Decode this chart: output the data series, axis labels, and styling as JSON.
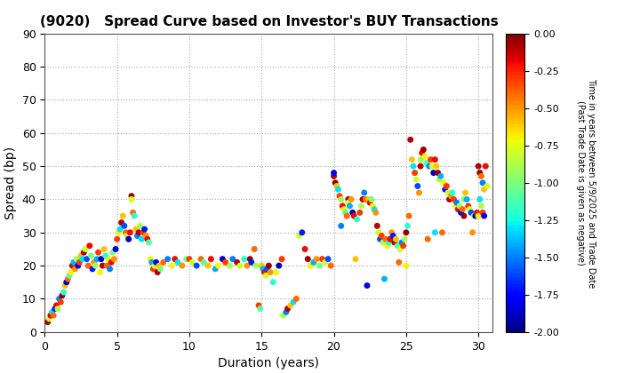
{
  "title": "(9020)   Spread Curve based on Investor's BUY Transactions",
  "xlabel": "Duration (years)",
  "ylabel": "Spread (bp)",
  "xlim": [
    0,
    31
  ],
  "ylim": [
    0,
    90
  ],
  "xticks": [
    0,
    5,
    10,
    15,
    20,
    25,
    30
  ],
  "yticks": [
    0,
    10,
    20,
    30,
    40,
    50,
    60,
    70,
    80,
    90
  ],
  "colorbar_label_line1": "Time in years between 5/9/2025 and Trade Date",
  "colorbar_label_line2": "(Past Trade Date is given as negative)",
  "colorbar_ticks": [
    0.0,
    -0.25,
    -0.5,
    -0.75,
    -1.0,
    -1.25,
    -1.5,
    -1.75,
    -2.0
  ],
  "cmap": "jet",
  "vmin": -2.0,
  "vmax": 0.0,
  "bg_color": "#ffffff",
  "grid_color": "#aaaaaa",
  "scatter_size": 25,
  "points": [
    [
      0.2,
      3,
      -0.05
    ],
    [
      0.3,
      4,
      -0.8
    ],
    [
      0.4,
      5,
      -0.15
    ],
    [
      0.5,
      6,
      -1.3
    ],
    [
      0.6,
      5,
      -0.4
    ],
    [
      0.7,
      7,
      -1.7
    ],
    [
      0.8,
      8,
      -0.2
    ],
    [
      0.9,
      7,
      -0.9
    ],
    [
      1.0,
      10,
      -1.5
    ],
    [
      1.1,
      9,
      -0.3
    ],
    [
      1.2,
      11,
      -0.05
    ],
    [
      1.3,
      12,
      -1.2
    ],
    [
      1.4,
      14,
      -0.6
    ],
    [
      1.5,
      15,
      -1.9
    ],
    [
      1.6,
      16,
      -0.4
    ],
    [
      1.7,
      17,
      -1.1
    ],
    [
      1.8,
      18,
      -0.7
    ],
    [
      1.9,
      20,
      -0.15
    ],
    [
      2.0,
      21,
      -1.4
    ],
    [
      2.1,
      19,
      -0.5
    ],
    [
      2.2,
      22,
      -0.9
    ],
    [
      2.3,
      20,
      -1.8
    ],
    [
      2.4,
      21,
      -0.3
    ],
    [
      2.5,
      23,
      -0.6
    ],
    [
      2.6,
      22,
      -1.3
    ],
    [
      2.7,
      24,
      -0.1
    ],
    [
      2.8,
      25,
      -0.8
    ],
    [
      2.9,
      22,
      -1.6
    ],
    [
      3.0,
      20,
      -0.4
    ],
    [
      3.1,
      26,
      -0.2
    ],
    [
      3.2,
      23,
      -1.0
    ],
    [
      3.3,
      19,
      -1.7
    ],
    [
      3.4,
      21,
      -0.5
    ],
    [
      3.5,
      20,
      -0.9
    ],
    [
      3.6,
      22,
      -1.4
    ],
    [
      3.7,
      24,
      -0.3
    ],
    [
      3.8,
      18,
      -0.7
    ],
    [
      3.9,
      22,
      -1.9
    ],
    [
      4.0,
      20,
      -0.1
    ],
    [
      4.1,
      25,
      -0.6
    ],
    [
      4.2,
      23,
      -1.2
    ],
    [
      4.3,
      20,
      -0.4
    ],
    [
      4.4,
      22,
      -0.8
    ],
    [
      4.5,
      19,
      -1.5
    ],
    [
      4.6,
      21,
      -0.2
    ],
    [
      4.7,
      24,
      -1.0
    ],
    [
      4.8,
      22,
      -0.5
    ],
    [
      4.9,
      25,
      -1.8
    ],
    [
      5.0,
      28,
      -0.3
    ],
    [
      5.1,
      30,
      -0.7
    ],
    [
      5.2,
      31,
      -1.3
    ],
    [
      5.3,
      33,
      -0.1
    ],
    [
      5.4,
      35,
      -0.6
    ],
    [
      5.5,
      32,
      -1.6
    ],
    [
      5.6,
      30,
      -0.4
    ],
    [
      5.7,
      29,
      -0.9
    ],
    [
      5.8,
      28,
      -1.9
    ],
    [
      5.9,
      30,
      -0.2
    ],
    [
      6.0,
      41,
      -0.05
    ],
    [
      6.0,
      40,
      -0.8
    ],
    [
      6.1,
      36,
      -0.4
    ],
    [
      6.2,
      35,
      -1.2
    ],
    [
      6.3,
      31,
      -0.6
    ],
    [
      6.4,
      29,
      -1.5
    ],
    [
      6.5,
      30,
      -0.1
    ],
    [
      6.6,
      32,
      -0.9
    ],
    [
      6.7,
      28,
      -1.3
    ],
    [
      6.8,
      30,
      -0.3
    ],
    [
      6.9,
      31,
      -1.7
    ],
    [
      7.0,
      29,
      -0.5
    ],
    [
      7.1,
      28,
      -0.2
    ],
    [
      7.2,
      27,
      -1.1
    ],
    [
      7.3,
      22,
      -0.7
    ],
    [
      7.4,
      21,
      -1.4
    ],
    [
      7.5,
      19,
      -0.3
    ],
    [
      7.6,
      20,
      -0.8
    ],
    [
      7.7,
      21,
      -1.8
    ],
    [
      7.8,
      18,
      -0.1
    ],
    [
      7.9,
      20,
      -0.6
    ],
    [
      8.0,
      19,
      -1.0
    ],
    [
      8.2,
      21,
      -0.4
    ],
    [
      8.5,
      22,
      -1.5
    ],
    [
      8.8,
      20,
      -0.7
    ],
    [
      9.0,
      22,
      -0.2
    ],
    [
      9.2,
      21,
      -1.3
    ],
    [
      9.5,
      20,
      -0.5
    ],
    [
      9.8,
      22,
      -1.0
    ],
    [
      10.0,
      22,
      -0.3
    ],
    [
      10.2,
      21,
      -0.8
    ],
    [
      10.5,
      20,
      -1.6
    ],
    [
      10.8,
      22,
      -0.4
    ],
    [
      11.0,
      21,
      -1.1
    ],
    [
      11.3,
      20,
      -0.6
    ],
    [
      11.5,
      22,
      -0.2
    ],
    [
      11.8,
      19,
      -1.4
    ],
    [
      12.0,
      20,
      -0.7
    ],
    [
      12.3,
      22,
      -1.9
    ],
    [
      12.5,
      21,
      -0.3
    ],
    [
      12.8,
      20,
      -0.9
    ],
    [
      13.0,
      22,
      -1.5
    ],
    [
      13.3,
      21,
      -0.1
    ],
    [
      13.5,
      20,
      -0.8
    ],
    [
      13.8,
      22,
      -1.2
    ],
    [
      14.0,
      20,
      -0.5
    ],
    [
      14.2,
      22,
      -0.05
    ],
    [
      14.3,
      21,
      -1.7
    ],
    [
      14.5,
      25,
      -0.4
    ],
    [
      14.6,
      20,
      -0.9
    ],
    [
      14.8,
      8,
      -0.3
    ],
    [
      14.9,
      7,
      -1.1
    ],
    [
      15.0,
      20,
      -0.6
    ],
    [
      15.1,
      19,
      -1.4
    ],
    [
      15.2,
      18,
      -0.2
    ],
    [
      15.3,
      17,
      -0.8
    ],
    [
      15.4,
      19,
      -1.6
    ],
    [
      15.5,
      20,
      -0.05
    ],
    [
      15.6,
      18,
      -0.5
    ],
    [
      15.8,
      15,
      -1.2
    ],
    [
      16.0,
      18,
      -0.7
    ],
    [
      16.2,
      20,
      -1.9
    ],
    [
      16.4,
      22,
      -0.3
    ],
    [
      16.5,
      5,
      -0.9
    ],
    [
      16.7,
      6,
      -1.5
    ],
    [
      16.8,
      7,
      -0.1
    ],
    [
      17.0,
      8,
      -0.6
    ],
    [
      17.2,
      9,
      -1.3
    ],
    [
      17.4,
      10,
      -0.4
    ],
    [
      17.6,
      29,
      -0.8
    ],
    [
      17.8,
      30,
      -1.7
    ],
    [
      18.0,
      25,
      -0.2
    ],
    [
      18.2,
      22,
      -0.05
    ],
    [
      18.4,
      20,
      -0.7
    ],
    [
      18.6,
      21,
      -1.4
    ],
    [
      18.8,
      22,
      -0.5
    ],
    [
      19.0,
      20,
      -1.0
    ],
    [
      19.2,
      22,
      -0.3
    ],
    [
      19.4,
      21,
      -0.8
    ],
    [
      19.6,
      22,
      -1.6
    ],
    [
      19.8,
      20,
      -0.4
    ],
    [
      20.0,
      47,
      -0.1
    ],
    [
      20.0,
      48,
      -1.8
    ],
    [
      20.1,
      45,
      -0.05
    ],
    [
      20.2,
      44,
      -0.6
    ],
    [
      20.3,
      43,
      -1.3
    ],
    [
      20.4,
      41,
      -0.3
    ],
    [
      20.5,
      40,
      -0.9
    ],
    [
      20.5,
      32,
      -1.5
    ],
    [
      20.6,
      38,
      -0.2
    ],
    [
      20.7,
      37,
      -0.7
    ],
    [
      20.8,
      36,
      -1.1
    ],
    [
      20.9,
      35,
      -0.4
    ],
    [
      21.0,
      40,
      -0.05
    ],
    [
      21.0,
      39,
      -0.8
    ],
    [
      21.1,
      38,
      -1.4
    ],
    [
      21.2,
      40,
      -0.5
    ],
    [
      21.3,
      36,
      -1.9
    ],
    [
      21.4,
      35,
      -0.2
    ],
    [
      21.5,
      22,
      -0.6
    ],
    [
      21.6,
      34,
      -1.2
    ],
    [
      21.8,
      36,
      -0.3
    ],
    [
      21.9,
      38,
      -0.9
    ],
    [
      22.0,
      40,
      -0.1
    ],
    [
      22.1,
      42,
      -1.5
    ],
    [
      22.2,
      40,
      -0.4
    ],
    [
      22.3,
      14,
      -1.8
    ],
    [
      22.4,
      40,
      -0.6
    ],
    [
      22.5,
      39,
      -0.2
    ],
    [
      22.6,
      40,
      -1.0
    ],
    [
      22.7,
      38,
      -0.7
    ],
    [
      22.8,
      37,
      -1.3
    ],
    [
      22.9,
      36,
      -0.5
    ],
    [
      23.0,
      32,
      -0.1
    ],
    [
      23.1,
      30,
      -0.8
    ],
    [
      23.2,
      28,
      -1.6
    ],
    [
      23.3,
      29,
      -0.3
    ],
    [
      23.4,
      27,
      -0.9
    ],
    [
      23.5,
      16,
      -1.4
    ],
    [
      23.6,
      28,
      -0.4
    ],
    [
      23.7,
      26,
      -0.7
    ],
    [
      23.8,
      27,
      -1.2
    ],
    [
      23.9,
      28,
      -0.2
    ],
    [
      24.0,
      30,
      -0.5
    ],
    [
      24.1,
      29,
      -1.7
    ],
    [
      24.2,
      27,
      -0.1
    ],
    [
      24.3,
      28,
      -0.6
    ],
    [
      24.4,
      26,
      -1.1
    ],
    [
      24.5,
      21,
      -0.4
    ],
    [
      24.6,
      25,
      -0.8
    ],
    [
      24.7,
      27,
      -1.5
    ],
    [
      24.8,
      26,
      -0.3
    ],
    [
      24.9,
      28,
      -0.9
    ],
    [
      25.0,
      30,
      -0.05
    ],
    [
      25.0,
      20,
      -0.7
    ],
    [
      25.1,
      32,
      -1.2
    ],
    [
      25.2,
      35,
      -0.4
    ],
    [
      25.3,
      58,
      -0.1
    ],
    [
      25.4,
      52,
      -0.6
    ],
    [
      25.5,
      50,
      -1.3
    ],
    [
      25.6,
      48,
      -0.3
    ],
    [
      25.7,
      46,
      -0.8
    ],
    [
      25.8,
      44,
      -1.6
    ],
    [
      25.9,
      42,
      -0.5
    ],
    [
      26.0,
      50,
      -0.1
    ],
    [
      26.0,
      52,
      -0.9
    ],
    [
      26.1,
      54,
      -0.2
    ],
    [
      26.2,
      55,
      -0.05
    ],
    [
      26.3,
      53,
      -0.7
    ],
    [
      26.4,
      51,
      -1.1
    ],
    [
      26.5,
      28,
      -0.4
    ],
    [
      26.6,
      50,
      -1.5
    ],
    [
      26.7,
      52,
      -0.3
    ],
    [
      26.8,
      50,
      -0.8
    ],
    [
      26.9,
      48,
      -1.9
    ],
    [
      27.0,
      52,
      -0.2
    ],
    [
      27.0,
      30,
      -1.3
    ],
    [
      27.1,
      50,
      -0.6
    ],
    [
      27.2,
      48,
      -0.05
    ],
    [
      27.3,
      46,
      -0.9
    ],
    [
      27.4,
      47,
      -1.4
    ],
    [
      27.5,
      30,
      -0.4
    ],
    [
      27.6,
      45,
      -0.7
    ],
    [
      27.7,
      43,
      -1.7
    ],
    [
      27.8,
      44,
      -0.3
    ],
    [
      27.9,
      42,
      -0.8
    ],
    [
      28.0,
      40,
      -0.1
    ],
    [
      28.1,
      41,
      -0.5
    ],
    [
      28.2,
      42,
      -1.2
    ],
    [
      28.3,
      40,
      -0.3
    ],
    [
      28.4,
      38,
      -0.7
    ],
    [
      28.5,
      39,
      -1.5
    ],
    [
      28.6,
      37,
      -0.2
    ],
    [
      28.7,
      38,
      -0.9
    ],
    [
      28.8,
      36,
      -1.8
    ],
    [
      28.9,
      37,
      -0.4
    ],
    [
      29.0,
      35,
      -0.05
    ],
    [
      29.0,
      40,
      -1.0
    ],
    [
      29.1,
      42,
      -0.6
    ],
    [
      29.2,
      40,
      -1.4
    ],
    [
      29.3,
      38,
      -0.3
    ],
    [
      29.4,
      37,
      -0.8
    ],
    [
      29.5,
      36,
      -1.6
    ],
    [
      29.6,
      30,
      -0.5
    ],
    [
      29.7,
      35,
      -0.9
    ],
    [
      29.8,
      35,
      -1.9
    ],
    [
      29.9,
      36,
      -0.2
    ],
    [
      30.0,
      50,
      -0.1
    ],
    [
      30.0,
      35,
      -0.7
    ],
    [
      30.1,
      48,
      -0.05
    ],
    [
      30.1,
      40,
      -1.3
    ],
    [
      30.2,
      47,
      -0.4
    ],
    [
      30.2,
      38,
      -0.9
    ],
    [
      30.3,
      45,
      -1.5
    ],
    [
      30.3,
      36,
      -0.3
    ],
    [
      30.4,
      43,
      -0.6
    ],
    [
      30.4,
      35,
      -1.8
    ],
    [
      30.5,
      50,
      -0.2
    ],
    [
      30.6,
      44,
      -0.8
    ]
  ]
}
